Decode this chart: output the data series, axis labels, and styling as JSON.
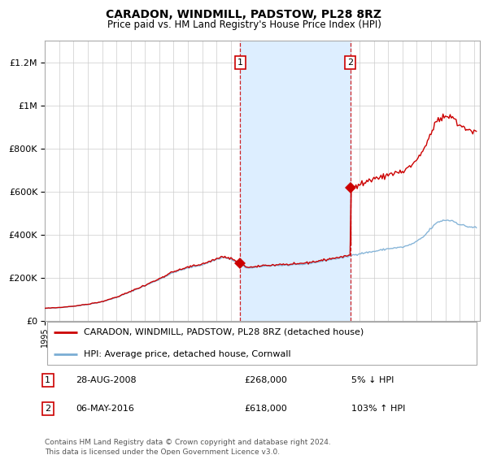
{
  "title": "CARADON, WINDMILL, PADSTOW, PL28 8RZ",
  "subtitle": "Price paid vs. HM Land Registry's House Price Index (HPI)",
  "sale1_date": 2008.66,
  "sale1_price": 268000,
  "sale1_label": "28-AUG-2008",
  "sale1_hpi_pct": "5% ↓ HPI",
  "sale2_date": 2016.35,
  "sale2_price": 618000,
  "sale2_label": "06-MAY-2016",
  "sale2_hpi_pct": "103% ↑ HPI",
  "legend1": "CARADON, WINDMILL, PADSTOW, PL28 8RZ (detached house)",
  "legend2": "HPI: Average price, detached house, Cornwall",
  "footnote1": "Contains HM Land Registry data © Crown copyright and database right 2024.",
  "footnote2": "This data is licensed under the Open Government Licence v3.0.",
  "red_color": "#cc0000",
  "blue_color": "#7aadd4",
  "shade_color": "#ddeeff",
  "ylim": [
    0,
    1300000
  ],
  "xlim_start": 1995,
  "xlim_end": 2025.4
}
